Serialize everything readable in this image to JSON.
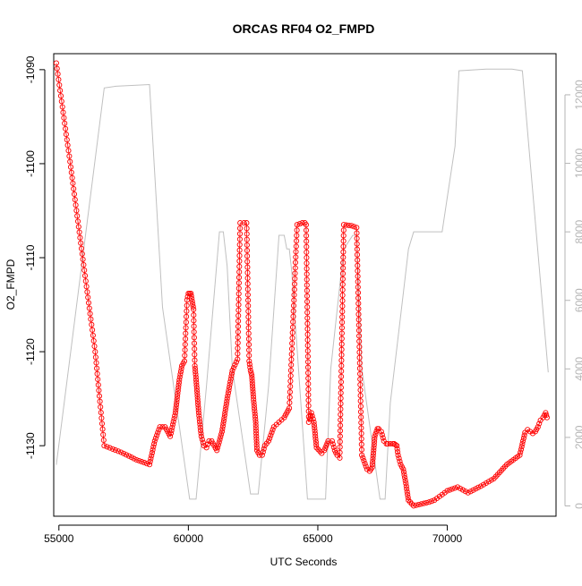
{
  "chart_data": {
    "type": "scatter",
    "title": "ORCAS RF04 O2_FMPD",
    "xlabel": "UTC Seconds",
    "ylabel": "O2_FMPD",
    "xlim": [
      54800,
      74200
    ],
    "ylim": [
      -1137.5,
      -1088.3
    ],
    "y2lim": [
      -300,
      13200
    ],
    "x_ticks": [
      55000,
      60000,
      65000,
      70000
    ],
    "y_ticks": [
      -1090,
      -1100,
      -1110,
      -1120,
      -1130
    ],
    "y2_ticks": [
      0,
      2000,
      4000,
      6000,
      8000,
      10000,
      12000
    ],
    "grid": false,
    "legend": "none",
    "series": [
      {
        "role": "primary",
        "style": "open-circles-with-line",
        "color": "#ff0000",
        "x": [
          54900,
          55400,
          55900,
          56400,
          56750,
          57400,
          58000,
          58500,
          58700,
          58900,
          59100,
          59300,
          59500,
          59650,
          59750,
          59850,
          59950,
          60000,
          60050,
          60100,
          60200,
          60250,
          60300,
          60400,
          60500,
          60600,
          60700,
          60800,
          60900,
          61100,
          61300,
          61500,
          61700,
          61900,
          62000,
          62150,
          62250,
          62350,
          62400,
          62450,
          62500,
          62600,
          62650,
          62750,
          62850,
          62950,
          63100,
          63300,
          63500,
          63700,
          63900,
          64200,
          64400,
          64500,
          64550,
          64650,
          64750,
          64850,
          64950,
          65150,
          65250,
          65400,
          65550,
          65650,
          65750,
          65850,
          66000,
          66300,
          66500,
          66700,
          66900,
          67000,
          67100,
          67200,
          67300,
          67350,
          67450,
          67550,
          67650,
          67700,
          67800,
          67900,
          67950,
          68000,
          68050,
          68100,
          68200,
          68300,
          68400,
          68500,
          68700,
          69000,
          69300,
          69500,
          69600,
          69700,
          69800,
          69900,
          70000,
          70200,
          70400,
          70800,
          71300,
          71800,
          72300,
          72800,
          72900,
          73000,
          73100,
          73200,
          73300,
          73400,
          73500,
          73600,
          73700,
          73800,
          73850
        ],
        "y": [
          -1089.3,
          -1099.2,
          -1109.6,
          -1120.0,
          -1130.0,
          -1130.7,
          -1131.5,
          -1132.0,
          -1129.5,
          -1128.0,
          -1128.0,
          -1129.0,
          -1126.5,
          -1123.0,
          -1121.5,
          -1121.0,
          -1114.5,
          -1113.8,
          -1113.8,
          -1113.8,
          -1115.5,
          -1121.5,
          -1123.0,
          -1126.5,
          -1129.0,
          -1130.0,
          -1130.2,
          -1129.5,
          -1129.5,
          -1130.5,
          -1128.5,
          -1125.0,
          -1122.0,
          -1120.8,
          -1106.3,
          -1106.3,
          -1106.3,
          -1121.0,
          -1122.0,
          -1122.5,
          -1124.5,
          -1127.5,
          -1130.5,
          -1131.0,
          -1131.0,
          -1130.0,
          -1129.5,
          -1128.0,
          -1127.5,
          -1127.0,
          -1126.0,
          -1106.5,
          -1106.3,
          -1106.3,
          -1106.5,
          -1127.5,
          -1126.5,
          -1127.5,
          -1130.2,
          -1130.8,
          -1130.5,
          -1129.5,
          -1129.5,
          -1130.5,
          -1131.0,
          -1131.3,
          -1106.5,
          -1106.6,
          -1106.8,
          -1131.0,
          -1132.5,
          -1132.7,
          -1132.3,
          -1129.0,
          -1128.2,
          -1128.2,
          -1128.5,
          -1129.5,
          -1129.8,
          -1129.8,
          -1129.8,
          -1129.8,
          -1129.8,
          -1129.9,
          -1130.0,
          -1131.0,
          -1132.0,
          -1132.5,
          -1134.0,
          -1135.8,
          -1136.4,
          -1136.2,
          -1136.0,
          -1135.8,
          -1135.6,
          -1135.4,
          -1135.2,
          -1135.0,
          -1134.8,
          -1134.6,
          -1134.4,
          -1135.0,
          -1134.3,
          -1133.5,
          -1132.0,
          -1131.0,
          -1129.8,
          -1128.6,
          -1128.3,
          -1128.5,
          -1128.7,
          -1128.5,
          -1128.0,
          -1127.3,
          -1127.0,
          -1126.5,
          -1127.0
        ],
        "note_peaks": "dotted vertical runs at each profile spike"
      },
      {
        "role": "secondary-axis",
        "style": "line",
        "color": "#c0c0c0",
        "x": [
          54900,
          56750,
          57200,
          58500,
          59000,
          60050,
          60300,
          60700,
          61200,
          61350,
          61500,
          61700,
          62400,
          62700,
          63100,
          63500,
          63700,
          63800,
          63900,
          64000,
          64600,
          65000,
          65300,
          65500,
          66000,
          66350,
          66500,
          66700,
          67400,
          67600,
          67800,
          68300,
          68500,
          68700,
          69200,
          69600,
          69800,
          70000,
          70300,
          70450,
          71500,
          72500,
          72900,
          73900
        ],
        "y": [
          1200,
          12200,
          12250,
          12300,
          5800,
          200,
          200,
          3500,
          8000,
          8000,
          7000,
          4000,
          350,
          350,
          3500,
          7900,
          7900,
          7500,
          7500,
          6800,
          200,
          200,
          200,
          4000,
          7500,
          7900,
          7900,
          4000,
          200,
          200,
          3000,
          6200,
          7500,
          8000,
          8000,
          8000,
          8000,
          9000,
          10500,
          12700,
          12750,
          12750,
          12700,
          3900
        ]
      }
    ]
  }
}
